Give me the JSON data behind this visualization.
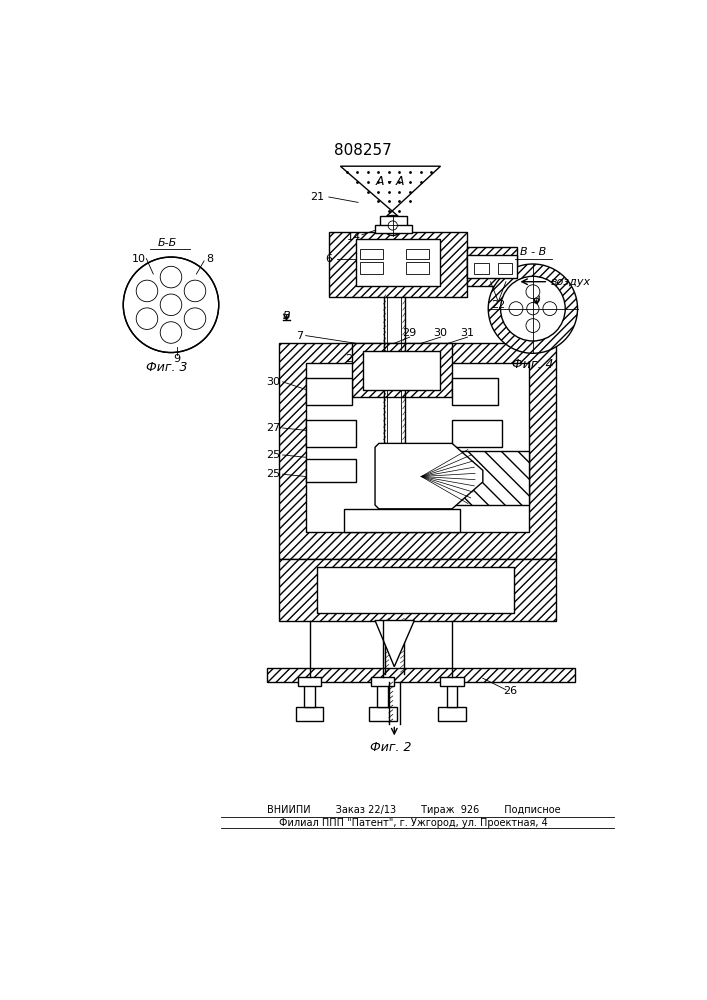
{
  "patent_number": "808257",
  "fig2_label": "Фиг. 2",
  "fig3_label": "Фиг. 3",
  "fig4_label": "Фиг. 4",
  "section_aa": "A - A",
  "section_bb": "Б-Б",
  "section_vv": "B - B",
  "vozdukh": "воздух",
  "footer_line1": "ВНИИПИ        Заказ 22/13        Тираж  926        Подписное",
  "footer_line2": "Филиал ППП \"Патент\", г. Ужгород, ул. Проектная, 4",
  "bg_color": "#ffffff"
}
